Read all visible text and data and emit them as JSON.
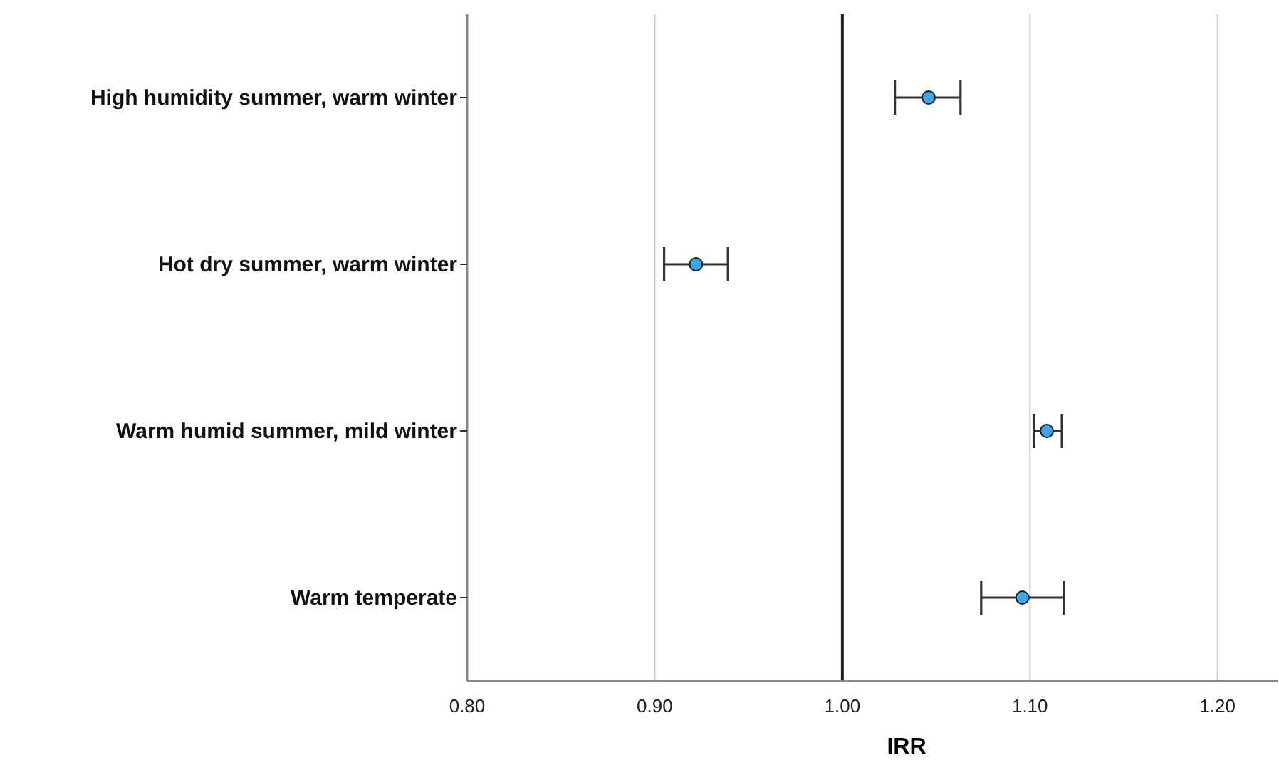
{
  "chart_data": {
    "type": "scatter",
    "orientation": "horizontal",
    "xlabel": "IRR",
    "categories": [
      "High humidity summer, warm winter",
      "Hot dry summer, warm winter",
      "Warm humid summer, mild winter",
      "Warm temperate"
    ],
    "series": [
      {
        "color": "#3da5e8",
        "values": [
          1.046,
          0.922,
          1.109,
          1.096
        ],
        "errors": [
          [
            1.028,
            1.063
          ],
          [
            0.905,
            0.939
          ],
          [
            1.102,
            1.117
          ],
          [
            1.074,
            1.118
          ]
        ]
      }
    ],
    "xlim": [
      0.8,
      1.232
    ],
    "xticks": [
      {
        "value": 0.8,
        "label": "0.80"
      },
      {
        "value": 0.9,
        "label": "0.90"
      },
      {
        "value": 1.0,
        "label": "1.00"
      },
      {
        "value": 1.1,
        "label": "1.10"
      },
      {
        "value": 1.2,
        "label": "1.20"
      }
    ],
    "grid": "x",
    "marker": "circle",
    "ref_lines": [
      {
        "axis": "x",
        "value": 1.0,
        "color": "#222222"
      }
    ]
  }
}
